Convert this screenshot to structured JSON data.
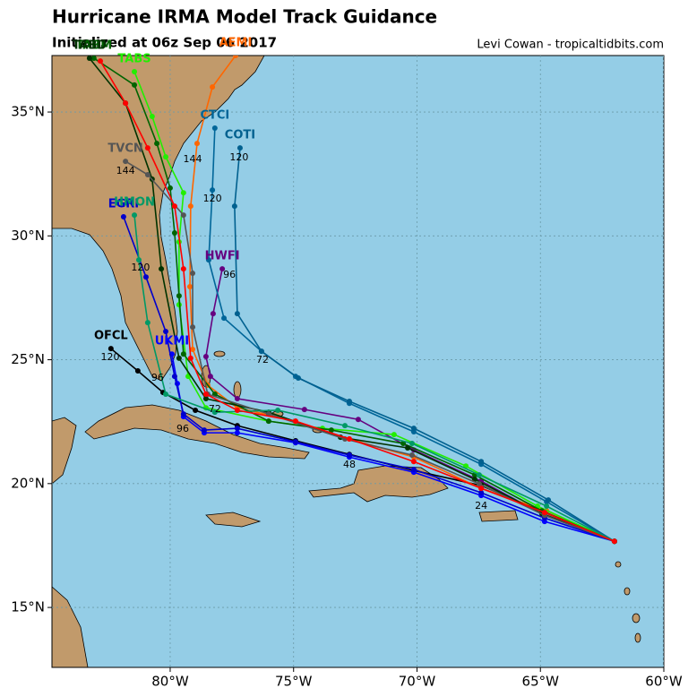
{
  "chart_data": {
    "type": "map",
    "title": "Hurricane IRMA Model Track Guidance",
    "subtitle": "Initialized at 06z Sep 06 2017",
    "credit": "Levi Cowan - tropicaltidbits.com",
    "xlim": [
      -84.79,
      -60.0
    ],
    "ylim": [
      12.58,
      37.28
    ],
    "xticks": [
      {
        "value": -80,
        "label": "80°W"
      },
      {
        "value": -75,
        "label": "75°W"
      },
      {
        "value": -70,
        "label": "70°W"
      },
      {
        "value": -65,
        "label": "65°W"
      },
      {
        "value": -60,
        "label": "60°W"
      }
    ],
    "yticks": [
      {
        "value": 15,
        "label": "15°N"
      },
      {
        "value": 20,
        "label": "20°N"
      },
      {
        "value": 25,
        "label": "25°N"
      },
      {
        "value": 30,
        "label": "30°N"
      },
      {
        "value": 35,
        "label": "35°N"
      }
    ],
    "grid": true,
    "series": [
      {
        "name": "OFCL",
        "color": "#000000",
        "lon": [
          -62.0,
          -64.83,
          -67.4,
          -70.13,
          -72.74,
          -74.92,
          -77.28,
          -78.98,
          -80.29,
          -81.31,
          -82.4
        ],
        "lat": [
          17.67,
          18.83,
          19.92,
          20.53,
          21.18,
          21.73,
          22.34,
          22.96,
          23.68,
          24.55,
          25.45
        ]
      },
      {
        "name": "UKMI",
        "color": "#0000ff",
        "lon": [
          -62.0,
          -64.83,
          -67.4,
          -70.13,
          -72.74,
          -74.92,
          -77.28,
          -78.62,
          -79.46,
          -79.71,
          -79.93
        ],
        "lat": [
          17.67,
          18.47,
          19.52,
          20.46,
          21.07,
          21.65,
          22.05,
          22.05,
          22.7,
          24.04,
          25.23
        ]
      },
      {
        "name": "EGRI",
        "color": "#0000cc",
        "lon": [
          -62.0,
          -64.83,
          -67.4,
          -70.13,
          -72.74,
          -74.92,
          -77.28,
          -78.62,
          -79.46,
          -79.82,
          -80.18,
          -80.98,
          -81.89
        ],
        "lat": [
          17.67,
          18.61,
          19.63,
          20.57,
          21.15,
          21.69,
          22.23,
          22.16,
          22.81,
          24.33,
          26.14,
          28.34,
          30.77
        ]
      },
      {
        "name": "HWFI",
        "color": "#660080",
        "lon": [
          -62.0,
          -64.83,
          -67.4,
          -70.13,
          -72.38,
          -74.56,
          -77.28,
          -78.37,
          -78.55,
          -78.26,
          -77.89
        ],
        "lat": [
          17.67,
          18.72,
          20.1,
          21.36,
          22.59,
          22.99,
          23.43,
          24.33,
          25.13,
          26.86,
          28.67
        ]
      },
      {
        "name": "CTCI",
        "color": "#006699",
        "lon": [
          -62.0,
          -64.75,
          -67.4,
          -70.13,
          -72.74,
          -74.92,
          -76.3,
          -77.82,
          -78.44,
          -78.29,
          -78.19
        ],
        "lat": [
          17.67,
          19.27,
          20.78,
          22.09,
          23.24,
          24.33,
          25.34,
          26.68,
          29.03,
          31.85,
          34.35
        ]
      },
      {
        "name": "COTI",
        "color": "#00608f",
        "lon": [
          -62.0,
          -64.68,
          -67.4,
          -70.13,
          -72.74,
          -74.81,
          -76.3,
          -77.28,
          -77.39,
          -77.17
        ],
        "lat": [
          17.67,
          19.34,
          20.89,
          22.23,
          23.32,
          24.26,
          25.34,
          26.86,
          31.2,
          33.55
        ]
      },
      {
        "name": "AEMI",
        "color": "#ff6600",
        "lon": [
          -62.0,
          -64.75,
          -67.4,
          -70.13,
          -72.74,
          -74.92,
          -77.28,
          -78.48,
          -79.09,
          -79.2,
          -79.17,
          -78.91,
          -78.29,
          -77.35
        ],
        "lat": [
          17.67,
          18.9,
          19.81,
          21.07,
          21.8,
          22.52,
          23.06,
          23.97,
          25.42,
          27.95,
          31.2,
          33.73,
          36.01,
          37.28
        ]
      },
      {
        "name": "TABS",
        "color": "#22ee00",
        "lon": [
          -62.0,
          -65.12,
          -68.02,
          -70.93,
          -73.83,
          -76.01,
          -78.55,
          -79.27,
          -79.64,
          -79.64,
          -79.46,
          -80.18,
          -80.73,
          -81.45
        ],
        "lat": [
          17.67,
          19.09,
          20.71,
          21.98,
          22.23,
          22.52,
          23.06,
          24.33,
          27.22,
          29.76,
          31.74,
          33.19,
          34.82,
          36.63
        ]
      },
      {
        "name": "TABM",
        "color": "#006400",
        "lon": [
          -62.0,
          -64.94,
          -67.66,
          -70.56,
          -73.47,
          -76.01,
          -78.19,
          -79.46,
          -79.64,
          -79.82,
          -80.0,
          -80.54,
          -81.45,
          -83.09
        ],
        "lat": [
          17.67,
          18.9,
          20.35,
          21.62,
          22.16,
          22.52,
          23.61,
          25.23,
          27.58,
          30.12,
          31.93,
          33.73,
          36.09,
          37.17
        ]
      },
      {
        "name": "TABD",
        "color": "#003300",
        "lon": [
          -62.0,
          -64.94,
          -67.66,
          -70.38,
          -73.1,
          -76.01,
          -78.55,
          -79.64,
          -80.36,
          -80.73,
          -81.81,
          -83.27
        ],
        "lat": [
          17.67,
          18.79,
          20.17,
          21.44,
          21.87,
          22.88,
          23.43,
          25.06,
          28.67,
          32.29,
          35.36,
          37.17
        ]
      },
      {
        "name": "TVCN",
        "color": "#555555",
        "lon": [
          -62.0,
          -64.83,
          -67.48,
          -70.2,
          -72.92,
          -76.01,
          -78.48,
          -79.09,
          -79.09,
          -79.46,
          -80.91,
          -81.81
        ],
        "lat": [
          17.67,
          18.72,
          19.99,
          21.15,
          21.8,
          22.81,
          23.61,
          26.32,
          28.49,
          30.84,
          32.47,
          33.01
        ]
      },
      {
        "name": "HMON",
        "color": "#009966",
        "lon": [
          -62.0,
          -64.75,
          -67.48,
          -70.2,
          -72.92,
          -75.64,
          -78.19,
          -80.18,
          -80.91,
          -81.27,
          -81.45
        ],
        "lat": [
          17.67,
          19.09,
          20.35,
          21.62,
          22.34,
          22.96,
          22.88,
          23.61,
          26.5,
          29.03,
          30.84
        ]
      },
      {
        "name": null,
        "color": "#ff0000",
        "lon": [
          -62.0,
          -64.83,
          -67.4,
          -70.13,
          -72.74,
          -74.92,
          -77.28,
          -78.55,
          -79.17,
          -79.46,
          -79.82,
          -80.91,
          -81.81,
          -82.83
        ],
        "lat": [
          17.67,
          18.83,
          19.81,
          20.89,
          21.8,
          22.52,
          22.96,
          23.61,
          25.06,
          28.67,
          31.2,
          33.55,
          35.36,
          37.06
        ]
      }
    ],
    "hour_labels": [
      {
        "text": "120",
        "lon": -82.43,
        "lat": 25.09
      },
      {
        "text": "96",
        "lon": -80.51,
        "lat": 24.26
      },
      {
        "text": "144",
        "lon": -81.81,
        "lat": 32.61
      },
      {
        "text": "120",
        "lon": -77.21,
        "lat": 33.16
      },
      {
        "text": "120",
        "lon": -78.29,
        "lat": 31.49
      },
      {
        "text": "96",
        "lon": -77.6,
        "lat": 28.42
      },
      {
        "text": "72",
        "lon": -76.26,
        "lat": 24.98
      },
      {
        "text": "48",
        "lon": -72.74,
        "lat": 20.75
      },
      {
        "text": "24",
        "lon": -67.4,
        "lat": 19.09
      },
      {
        "text": "144",
        "lon": -79.09,
        "lat": 33.08
      },
      {
        "text": "120",
        "lon": -81.2,
        "lat": 28.71
      },
      {
        "text": "96",
        "lon": -79.49,
        "lat": 22.2
      },
      {
        "text": "72",
        "lon": -78.19,
        "lat": 22.99
      }
    ]
  }
}
